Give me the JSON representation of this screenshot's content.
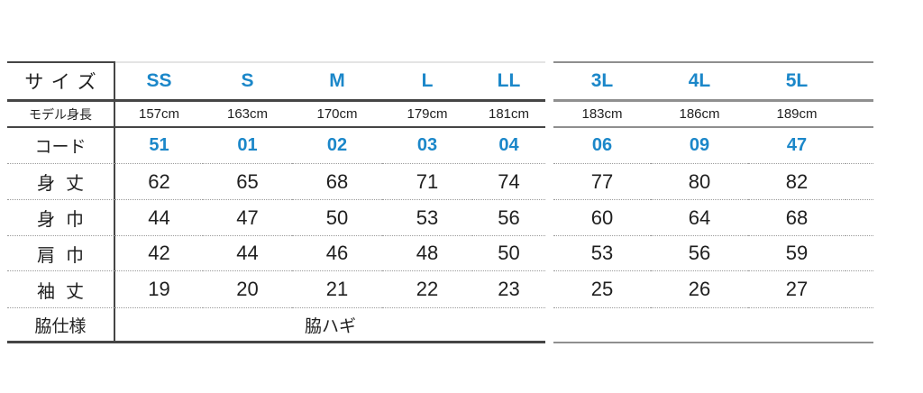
{
  "colors": {
    "accent_blue": "#1b87c9",
    "text": "#1f1f1f",
    "line_dark": "#454545",
    "line_gray": "#8f8f8f",
    "line_light": "#e4e4e4"
  },
  "size_chart": {
    "size_row": {
      "label": "サイズ",
      "sizes": [
        "SS",
        "S",
        "M",
        "L",
        "LL",
        "3L",
        "4L",
        "5L"
      ]
    },
    "model_height_row": {
      "label": "モデル身長",
      "values": [
        "157cm",
        "163cm",
        "170cm",
        "179cm",
        "181cm",
        "183cm",
        "186cm",
        "189cm"
      ]
    },
    "code_row": {
      "label": "コード",
      "codes": [
        "51",
        "01",
        "02",
        "03",
        "04",
        "06",
        "09",
        "47"
      ]
    },
    "measurement_rows": [
      {
        "label": "身丈",
        "values": [
          "62",
          "65",
          "68",
          "71",
          "74",
          "77",
          "80",
          "82"
        ]
      },
      {
        "label": "身巾",
        "values": [
          "44",
          "47",
          "50",
          "53",
          "56",
          "60",
          "64",
          "68"
        ]
      },
      {
        "label": "肩巾",
        "values": [
          "42",
          "44",
          "46",
          "48",
          "50",
          "53",
          "56",
          "59"
        ]
      },
      {
        "label": "袖丈",
        "values": [
          "19",
          "20",
          "21",
          "22",
          "23",
          "25",
          "26",
          "27"
        ]
      }
    ],
    "side_spec_row": {
      "label": "脇仕様",
      "value": "脇ハギ"
    }
  }
}
